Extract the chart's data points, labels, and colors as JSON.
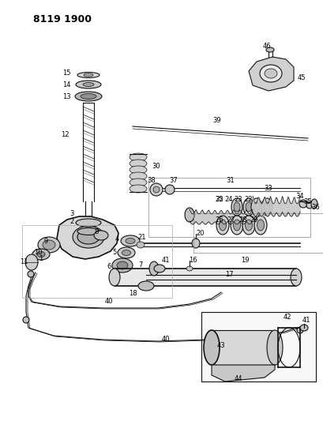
{
  "title": "8119 1900",
  "bg_color": "#ffffff",
  "fig_width": 4.1,
  "fig_height": 5.33,
  "dpi": 100,
  "label_fontsize": 6.0,
  "line_color": "#111111"
}
